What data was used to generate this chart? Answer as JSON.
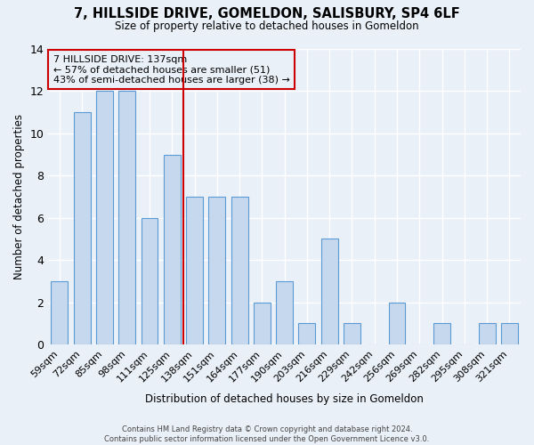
{
  "title": "7, HILLSIDE DRIVE, GOMELDON, SALISBURY, SP4 6LF",
  "subtitle": "Size of property relative to detached houses in Gomeldon",
  "xlabel": "Distribution of detached houses by size in Gomeldon",
  "ylabel": "Number of detached properties",
  "categories": [
    "59sqm",
    "72sqm",
    "85sqm",
    "98sqm",
    "111sqm",
    "125sqm",
    "138sqm",
    "151sqm",
    "164sqm",
    "177sqm",
    "190sqm",
    "203sqm",
    "216sqm",
    "229sqm",
    "242sqm",
    "256sqm",
    "269sqm",
    "282sqm",
    "295sqm",
    "308sqm",
    "321sqm"
  ],
  "values": [
    3,
    11,
    12,
    12,
    6,
    9,
    7,
    7,
    7,
    2,
    3,
    1,
    5,
    1,
    0,
    2,
    0,
    1,
    0,
    1,
    1
  ],
  "bar_color": "#c5d8ed",
  "bar_edge_color": "#5b9bd5",
  "property_line_index": 6,
  "property_line_label": "7 HILLSIDE DRIVE: 137sqm",
  "annotation_line2": "← 57% of detached houses are smaller (51)",
  "annotation_line3": "43% of semi-detached houses are larger (38) →",
  "line_color": "#cc0000",
  "annotation_box_edge_color": "#cc0000",
  "ylim": [
    0,
    14
  ],
  "yticks": [
    0,
    2,
    4,
    6,
    8,
    10,
    12,
    14
  ],
  "background_color": "#eaf0f8",
  "grid_color": "#ffffff",
  "footer_line1": "Contains HM Land Registry data © Crown copyright and database right 2024.",
  "footer_line2": "Contains public sector information licensed under the Open Government Licence v3.0."
}
